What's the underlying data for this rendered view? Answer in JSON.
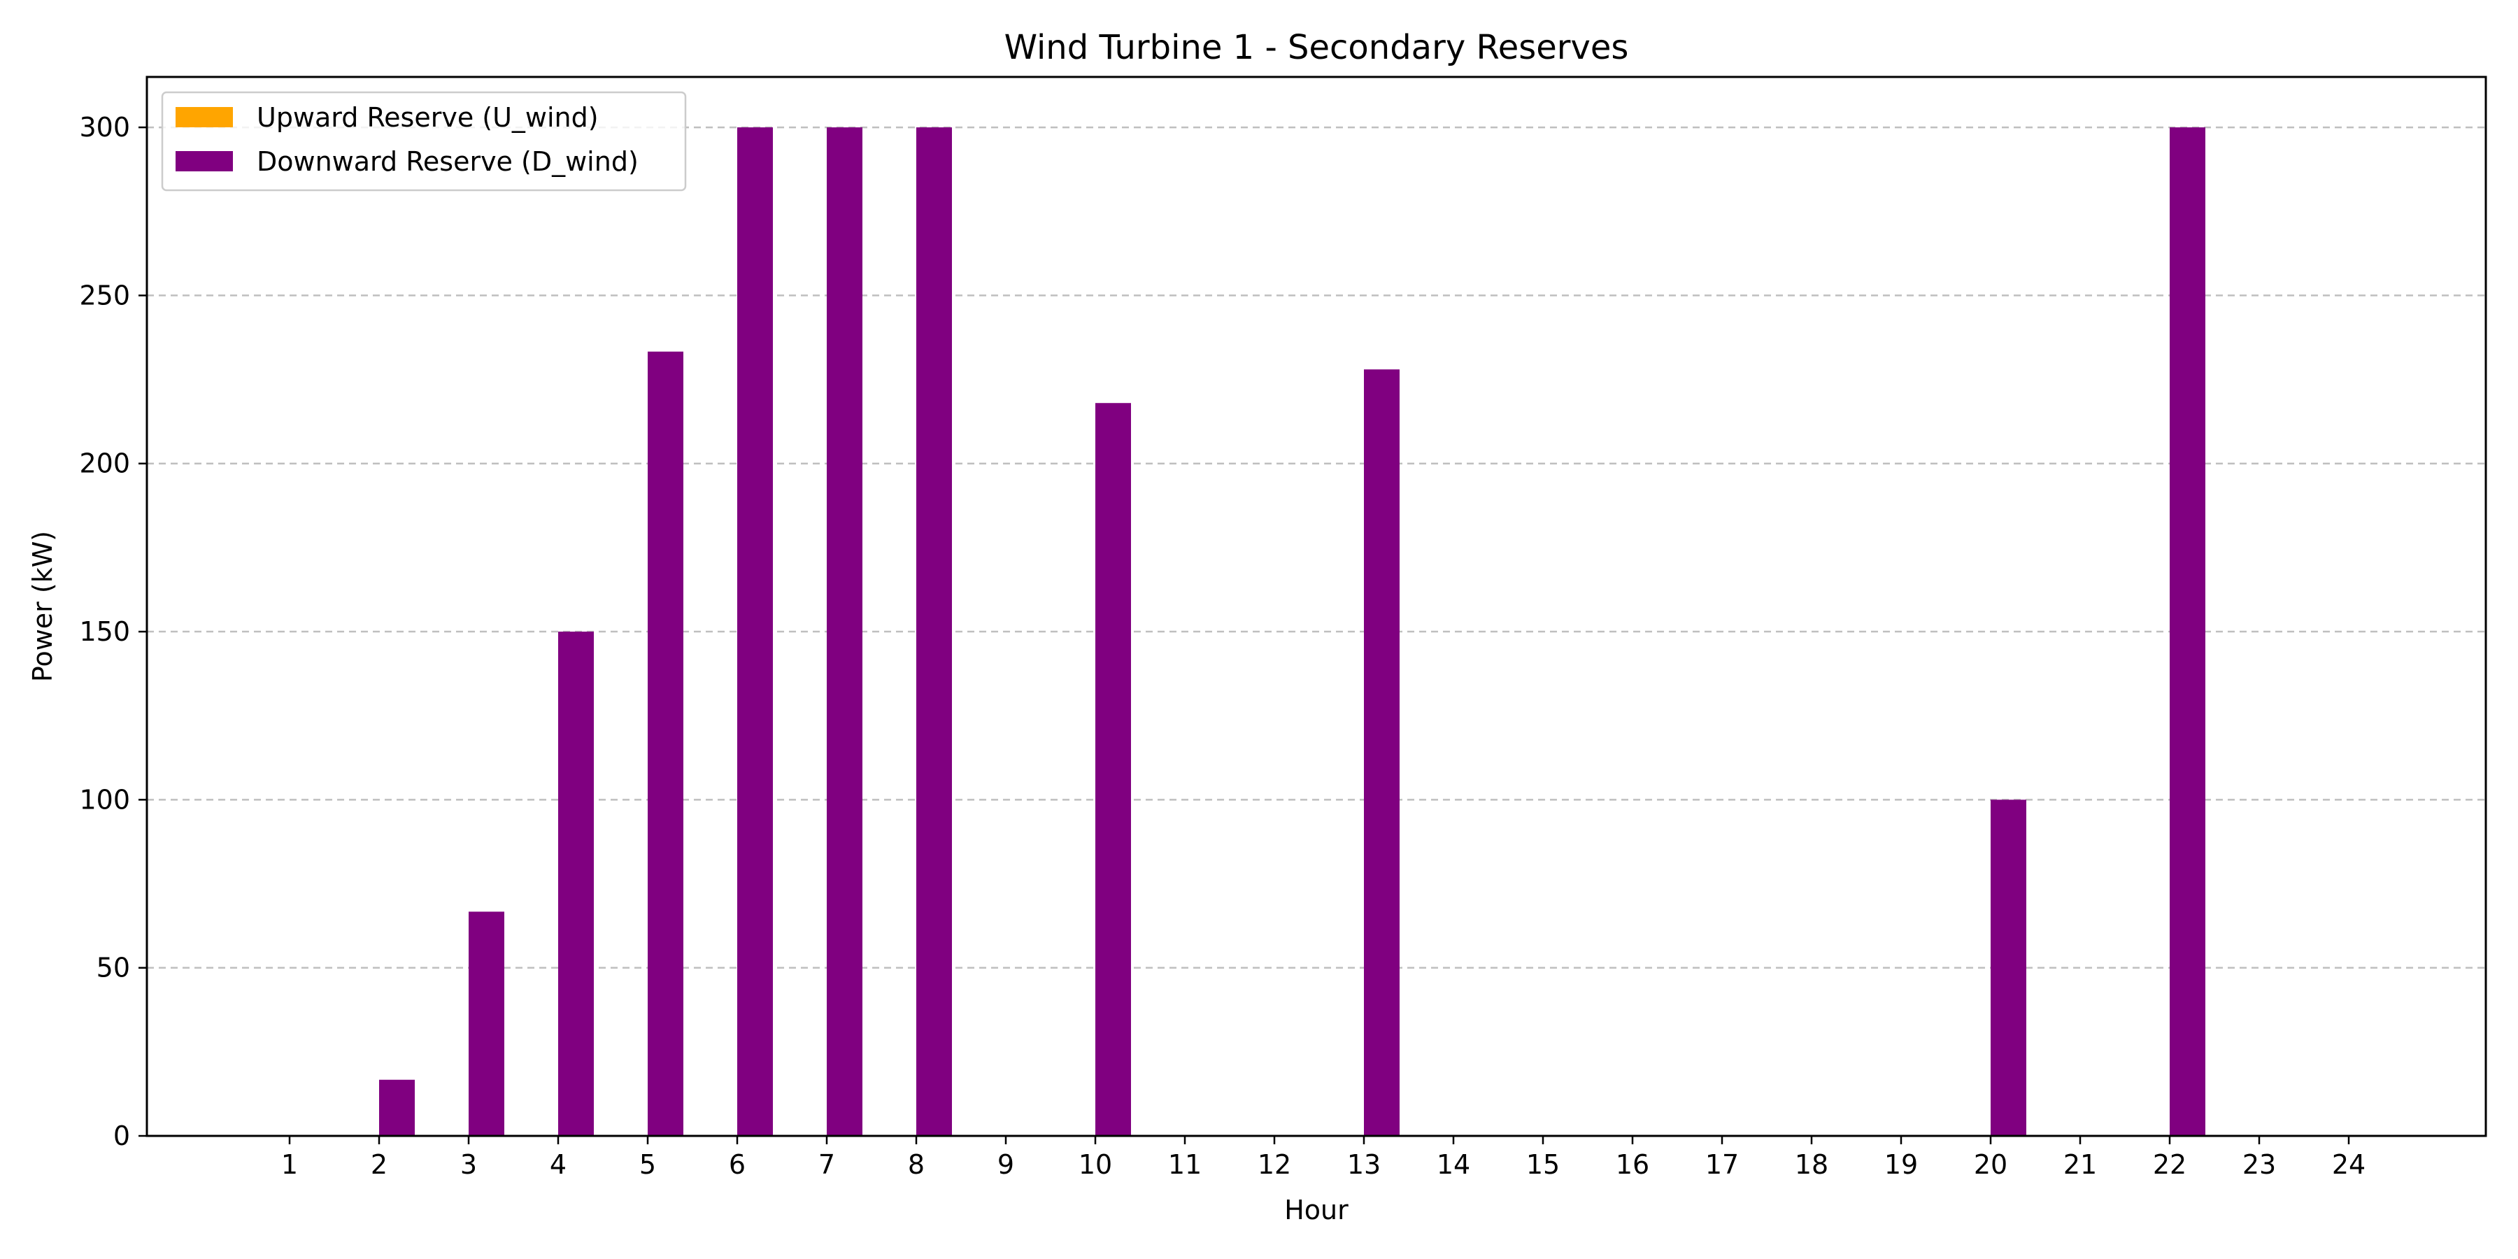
{
  "chart_data": {
    "type": "bar",
    "title": "Wind Turbine 1 - Secondary Reserves",
    "xlabel": "Hour",
    "ylabel": "Power (kW)",
    "categories": [
      "1",
      "2",
      "3",
      "4",
      "5",
      "6",
      "7",
      "8",
      "9",
      "10",
      "11",
      "12",
      "13",
      "14",
      "15",
      "16",
      "17",
      "18",
      "19",
      "20",
      "21",
      "22",
      "23",
      "24"
    ],
    "series": [
      {
        "name": "Upward Reserve (U_wind)",
        "color": "#ffa500",
        "values": [
          0,
          0,
          0,
          0,
          0,
          0,
          0,
          0,
          0,
          0,
          0,
          0,
          0,
          0,
          0,
          0,
          0,
          0,
          0,
          0,
          0,
          0,
          0,
          0
        ]
      },
      {
        "name": "Downward Reserve (D_wind)",
        "color": "#800080",
        "values": [
          0,
          16.7,
          66.7,
          150,
          233.3,
          300,
          300,
          300,
          0,
          218,
          0,
          0,
          228,
          0,
          0,
          0,
          0,
          0,
          0,
          100,
          0,
          300,
          0,
          0
        ]
      }
    ],
    "ylim": [
      0,
      315
    ],
    "yticks": [
      0,
      50,
      100,
      150,
      200,
      250,
      300
    ],
    "grid": "y-dashed",
    "legend_position": "top-left"
  }
}
